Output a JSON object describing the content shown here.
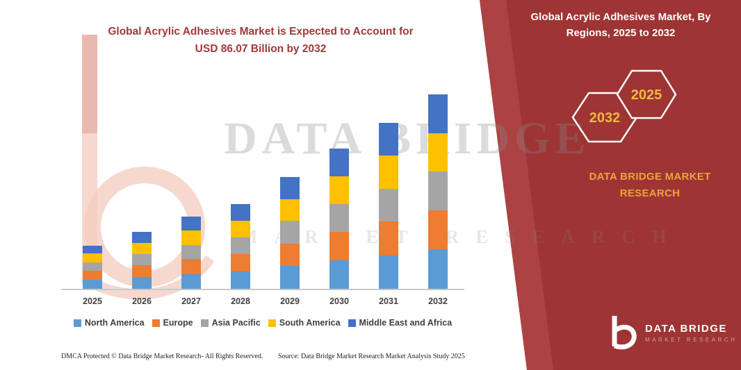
{
  "header": {
    "chart_title_line1": "Global Acrylic Adhesives Market is Expected to Account for",
    "chart_title_line2": "USD 86.07 Billion by 2032"
  },
  "panel": {
    "title_line1": "Global Acrylic Adhesives Market, By",
    "title_line2": "Regions, 2025 to 2032",
    "year_back": "2032",
    "year_front": "2025",
    "brand_text": "DATA BRIDGE MARKET RESEARCH",
    "logo": {
      "name": "DATA BRIDGE",
      "tagline": "MARKET RESEARCH"
    },
    "colors": {
      "panel_red": "#9E3434",
      "gold": "#F0BA3C",
      "brand_gold": "#EDA43C"
    }
  },
  "watermark": {
    "line1": "DATA BRIDGE",
    "line2": "MARKET RESEARCH"
  },
  "footer": {
    "left": "DMCA Protected © Data Bridge Market Research- All Rights Reserved.",
    "right": "Source: Data Bridge Market Research Market Analysis Study 2025"
  },
  "chart_data": {
    "type": "bar",
    "stacked": true,
    "title": "Global Acrylic Adhesives Market is Expected to Account for USD 86.07 Billion by 2032",
    "xlabel": "",
    "ylabel": "",
    "ylim": [
      0,
      90
    ],
    "grid": false,
    "legend_position": "bottom",
    "categories": [
      "2025",
      "2026",
      "2027",
      "2028",
      "2029",
      "2030",
      "2031",
      "2032"
    ],
    "totals_estimated_usd_billion": [
      19.2,
      25.2,
      32.0,
      37.6,
      49.6,
      62.2,
      73.6,
      86.07
    ],
    "series": [
      {
        "name": "North America",
        "color": "#5B9BD5",
        "values": [
          4.1,
          5.3,
          6.6,
          7.7,
          10.1,
          12.6,
          14.9,
          17.5
        ]
      },
      {
        "name": "Europe",
        "color": "#ED7D31",
        "values": [
          3.9,
          5.1,
          6.5,
          7.6,
          10.0,
          12.5,
          14.8,
          17.2
        ]
      },
      {
        "name": "Asia Pacific",
        "color": "#A5A5A5",
        "values": [
          3.8,
          5.0,
          6.4,
          7.5,
          9.9,
          12.4,
          14.7,
          17.2
        ]
      },
      {
        "name": "South America",
        "color": "#FFC000",
        "values": [
          3.8,
          5.0,
          6.3,
          7.4,
          9.8,
          12.4,
          14.6,
          17.1
        ]
      },
      {
        "name": "Middle East and Africa",
        "color": "#4472C4",
        "values": [
          3.6,
          4.8,
          6.2,
          7.4,
          9.8,
          12.3,
          14.6,
          17.07
        ]
      }
    ]
  }
}
